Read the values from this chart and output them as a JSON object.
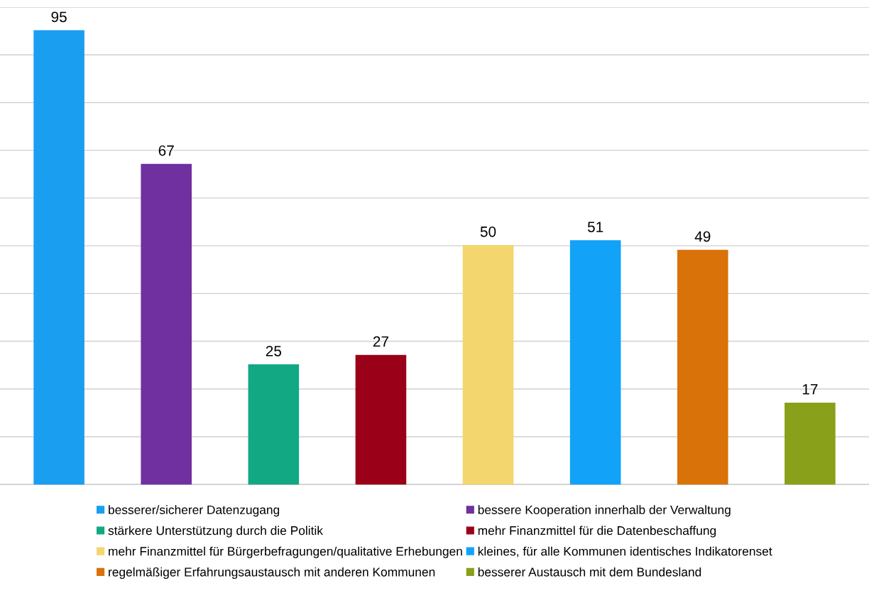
{
  "chart_data": {
    "type": "bar",
    "stacked": true,
    "categories": [
      null,
      null,
      null,
      null,
      null,
      null,
      null,
      null
    ],
    "series": [
      {
        "name": "besserer/sicherer Datenzugang",
        "color": "#1a9ff0",
        "values": [
          95,
          null,
          null,
          null,
          null,
          null,
          null,
          null
        ]
      },
      {
        "name": "bessere Kooperation innerhalb der Verwaltung",
        "color": "#7030a0",
        "values": [
          null,
          67,
          null,
          null,
          null,
          null,
          null,
          null
        ]
      },
      {
        "name": "stärkere Unterstützung durch die Politik",
        "color": "#12a884",
        "values": [
          null,
          null,
          25,
          null,
          null,
          null,
          null,
          null
        ]
      },
      {
        "name": "mehr Finanzmittel für die Datenbeschaffung",
        "color": "#9a0018",
        "values": [
          null,
          null,
          null,
          27,
          null,
          null,
          null,
          null
        ]
      },
      {
        "name": "mehr Finanzmittel für Bürgerbefragungen/qualitative Erhebungen",
        "color": "#f3d66e",
        "values": [
          null,
          null,
          null,
          null,
          50,
          null,
          null,
          null
        ]
      },
      {
        "name": "kleines, für alle Kommunen identisches Indikatorenset",
        "color": "#12a2f8",
        "values": [
          null,
          null,
          null,
          null,
          null,
          51,
          null,
          null
        ]
      },
      {
        "name": "regelmäßiger Erfahrungsaustausch mit anderen Kommunen",
        "color": "#d97208",
        "values": [
          null,
          null,
          null,
          null,
          null,
          null,
          49,
          null
        ]
      },
      {
        "name": "besserer Austausch mit dem Bundesland",
        "color": "#88a01a",
        "values": [
          null,
          null,
          null,
          null,
          null,
          null,
          null,
          17
        ]
      }
    ],
    "grid": "y",
    "data_labels": true,
    "legend": "bottom"
  }
}
